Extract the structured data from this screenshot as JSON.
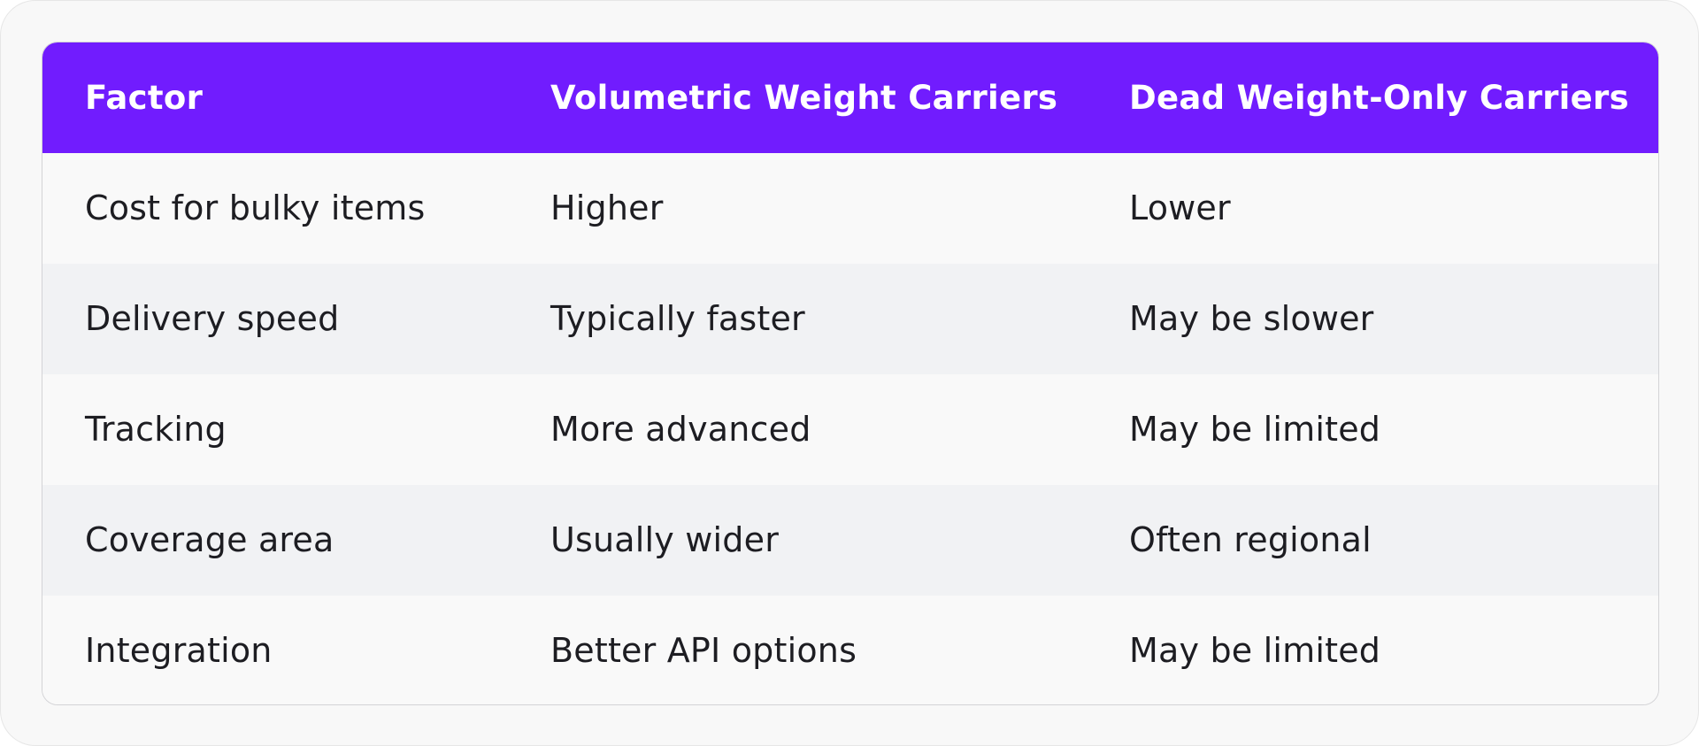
{
  "table": {
    "headers": [
      "Factor",
      "Volumetric Weight Carriers",
      "Dead Weight-Only Carriers"
    ],
    "rows": [
      [
        "Cost for bulky items",
        "Higher",
        "Lower"
      ],
      [
        "Delivery speed",
        "Typically faster",
        "May be slower"
      ],
      [
        "Tracking",
        "More advanced",
        "May be limited"
      ],
      [
        "Coverage area",
        "Usually wider",
        "Often regional"
      ],
      [
        "Integration",
        "Better API options",
        "May be limited"
      ]
    ]
  },
  "colors": {
    "header_background": "#711cfe",
    "header_text": "#ffffff",
    "row_odd": "#f9f9f9",
    "row_even": "#f1f2f4",
    "body_text": "#1d1d22"
  }
}
